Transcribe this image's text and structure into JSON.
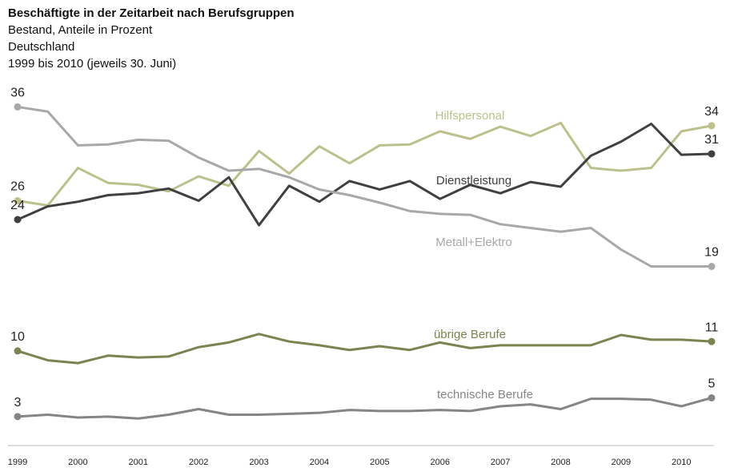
{
  "chart_data": {
    "type": "line",
    "title": "Beschäftigte in der Zeitarbeit nach Berufsgruppen",
    "subtitle": [
      "Bestand, Anteile in Prozent",
      "Deutschland",
      "1999 bis 2010 (jeweils 30. Juni)"
    ],
    "x": [
      1999,
      1999.5,
      2000,
      2000.5,
      2001,
      2001.5,
      2002,
      2002.5,
      2003,
      2003.5,
      2004,
      2004.5,
      2005,
      2005.5,
      2006,
      2006.5,
      2007,
      2007.5,
      2008,
      2008.5,
      2009,
      2009.5,
      2010,
      2010.5
    ],
    "xlim": [
      1999,
      2010.5
    ],
    "xticks": [
      1999,
      2000,
      2001,
      2002,
      2003,
      2004,
      2005,
      2006,
      2007,
      2008,
      2009,
      2010
    ],
    "ylim": [
      0,
      38
    ],
    "series": [
      {
        "name": "Hilfspersonal",
        "color": "#bcc18c",
        "values": [
          26,
          25.5,
          29.5,
          27.9,
          27.7,
          27,
          28.6,
          27.6,
          31.3,
          28.9,
          31.8,
          30,
          31.9,
          32,
          33.4,
          32.6,
          33.9,
          32.9,
          34.3,
          29.5,
          29.2,
          29.5,
          33.4,
          34
        ]
      },
      {
        "name": "Dienstleistung",
        "color": "#404040",
        "values": [
          24,
          25.4,
          25.9,
          26.6,
          26.8,
          27.3,
          26,
          28.5,
          23.4,
          27.6,
          25.9,
          28.1,
          27.2,
          28.1,
          26.2,
          27.7,
          26.8,
          28,
          27.5,
          30.8,
          32.3,
          34.2,
          30.9,
          31
        ]
      },
      {
        "name": "Metall+Elektro",
        "color": "#a8a8a8",
        "values": [
          36,
          35.5,
          31.9,
          32,
          32.5,
          32.4,
          30.6,
          29.2,
          29.4,
          28.5,
          27.2,
          26.6,
          25.8,
          24.9,
          24.6,
          24.5,
          23.5,
          23.1,
          22.7,
          23.1,
          20.8,
          19,
          19,
          19
        ]
      },
      {
        "name": "übrige Berufe",
        "color": "#7b8450",
        "values": [
          10,
          9,
          8.7,
          9.5,
          9.3,
          9.4,
          10.4,
          10.9,
          11.8,
          11,
          10.6,
          10.1,
          10.5,
          10.1,
          10.9,
          10.3,
          10.6,
          10.6,
          10.6,
          10.6,
          11.7,
          11.2,
          11.2,
          11
        ]
      },
      {
        "name": "technische Berufe",
        "color": "#858585",
        "values": [
          3,
          3.2,
          2.9,
          3,
          2.8,
          3.2,
          3.8,
          3.2,
          3.2,
          3.3,
          3.4,
          3.7,
          3.6,
          3.6,
          3.7,
          3.6,
          4.1,
          4.3,
          3.8,
          4.9,
          4.9,
          4.8,
          4.1,
          5
        ]
      }
    ]
  }
}
